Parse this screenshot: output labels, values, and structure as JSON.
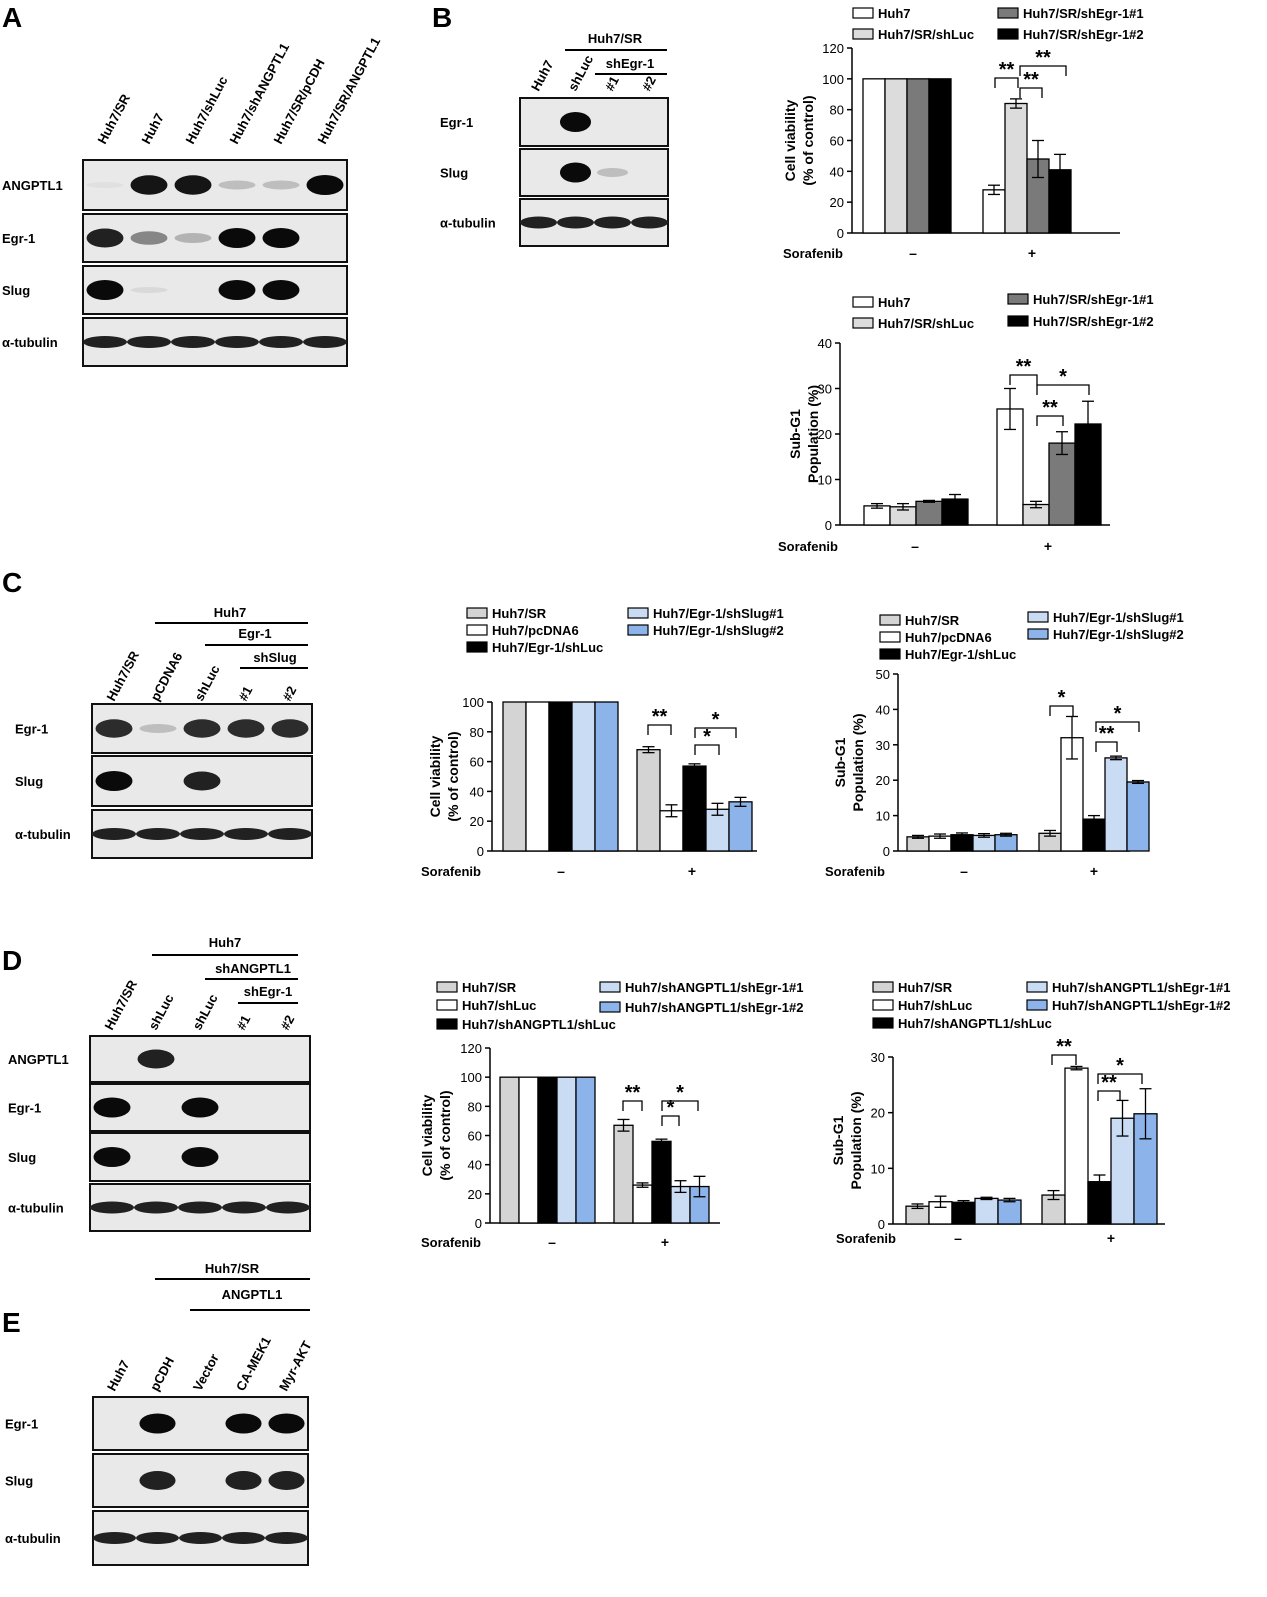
{
  "panels": {
    "A": {
      "letter": "A",
      "lanes": [
        "Huh7/SR",
        "Huh7",
        "Huh7/shLuc",
        "Huh7/shANGPTL1",
        "Huh7/SR/pCDH",
        "Huh7/SR/ANGPTL1"
      ],
      "rows": [
        "ANGPTL1",
        "Egr-1",
        "Slug",
        "α-tubulin"
      ],
      "band_intensity": [
        [
          0.05,
          0.95,
          0.95,
          0.2,
          0.2,
          1.0
        ],
        [
          0.9,
          0.45,
          0.25,
          1.0,
          1.0,
          0.0
        ],
        [
          1.0,
          0.08,
          0.0,
          1.0,
          1.0,
          0.0
        ],
        [
          0.9,
          0.9,
          0.9,
          0.9,
          0.9,
          0.9
        ]
      ]
    },
    "B": {
      "letter": "B",
      "group_top": "Huh7/SR",
      "group_sub": "shEgr-1",
      "lanes": [
        "Huh7",
        "shLuc",
        "#1",
        "#2"
      ],
      "rows": [
        "Egr-1",
        "Slug",
        "α-tubulin"
      ],
      "band_intensity": [
        [
          0.0,
          1.0,
          0.0,
          0.0
        ],
        [
          0.0,
          1.0,
          0.2,
          0.0
        ],
        [
          0.9,
          0.9,
          0.9,
          0.9
        ]
      ]
    },
    "C": {
      "letter": "C",
      "group_top": "Huh7",
      "group_mid": "Egr-1",
      "group_sub": "shSlug",
      "lanes": [
        "Huh7/SR",
        "pCDNA6",
        "shLuc",
        "#1",
        "#2"
      ],
      "rows": [
        "Egr-1",
        "Slug",
        "α-tubulin"
      ],
      "band_intensity": [
        [
          0.85,
          0.2,
          0.85,
          0.85,
          0.85
        ],
        [
          1.0,
          0.0,
          0.9,
          0.0,
          0.0
        ],
        [
          0.9,
          0.9,
          0.9,
          0.9,
          0.9
        ]
      ]
    },
    "D": {
      "letter": "D",
      "group_top": "Huh7",
      "group_mid": "shANGPTL1",
      "group_sub": "shEgr-1",
      "lanes": [
        "Huh7/SR",
        "shLuc",
        "shLuc",
        "#1",
        "#2"
      ],
      "rows": [
        "ANGPTL1",
        "Egr-1",
        "Slug",
        "α-tubulin"
      ],
      "band_intensity": [
        [
          0.0,
          0.9,
          0.0,
          0.0,
          0.0
        ],
        [
          1.0,
          0.0,
          1.0,
          0.0,
          0.0
        ],
        [
          1.0,
          0.0,
          1.0,
          0.0,
          0.0
        ],
        [
          0.9,
          0.9,
          0.9,
          0.9,
          0.9
        ]
      ]
    },
    "E": {
      "letter": "E",
      "group_top": "Huh7/SR",
      "group_sub": "ANGPTL1",
      "lanes": [
        "Huh7",
        "pCDH",
        "Vector",
        "CA-MEK1",
        "Myr-AKT"
      ],
      "rows": [
        "Egr-1",
        "Slug",
        "α-tubulin"
      ],
      "band_intensity": [
        [
          0.0,
          1.0,
          0.0,
          1.0,
          1.0
        ],
        [
          0.0,
          0.9,
          0.0,
          0.9,
          0.9
        ],
        [
          0.9,
          0.9,
          0.9,
          0.9,
          0.9
        ]
      ]
    }
  },
  "chart_data": [
    {
      "id": "B-viability",
      "type": "bar",
      "categories": [
        "–",
        "+"
      ],
      "xlabel": "Sorafenib",
      "ylabel": [
        "Cell viability",
        "(% of control)"
      ],
      "ylim": [
        0,
        120
      ],
      "yticks": [
        0,
        20,
        40,
        60,
        80,
        100,
        120
      ],
      "series": [
        {
          "name": "Huh7",
          "color": "#ffffff",
          "values": [
            100,
            28
          ],
          "err": [
            0,
            3
          ]
        },
        {
          "name": "Huh7/SR/shLuc",
          "color": "#dcdcdc",
          "values": [
            100,
            84
          ],
          "err": [
            0,
            3
          ]
        },
        {
          "name": "Huh7/SR/shEgr-1#1",
          "color": "#7a7a7a",
          "values": [
            100,
            48
          ],
          "err": [
            0,
            12
          ]
        },
        {
          "name": "Huh7/SR/shEgr-1#2",
          "color": "#000000",
          "values": [
            100,
            41
          ],
          "err": [
            0,
            10
          ]
        }
      ],
      "significance": [
        "**",
        "**",
        "**"
      ]
    },
    {
      "id": "B-subg1",
      "type": "bar",
      "categories": [
        "–",
        "+"
      ],
      "xlabel": "Sorafenib",
      "ylabel": [
        "Sub-G1",
        "Population (%)"
      ],
      "ylim": [
        0,
        40
      ],
      "yticks": [
        0,
        10,
        20,
        30,
        40
      ],
      "series": [
        {
          "name": "Huh7",
          "color": "#ffffff",
          "values": [
            4.2,
            25.5
          ],
          "err": [
            0.5,
            4.5
          ]
        },
        {
          "name": "Huh7/SR/shLuc",
          "color": "#dcdcdc",
          "values": [
            4.0,
            4.5
          ],
          "err": [
            0.7,
            0.7
          ]
        },
        {
          "name": "Huh7/SR/shEgr-1#1",
          "color": "#7a7a7a",
          "values": [
            5.2,
            18
          ],
          "err": [
            0.2,
            2.5
          ]
        },
        {
          "name": "Huh7/SR/shEgr-1#2",
          "color": "#000000",
          "values": [
            5.7,
            22.2
          ],
          "err": [
            1.0,
            5.0
          ]
        }
      ],
      "significance": [
        "**",
        "**",
        "*"
      ]
    },
    {
      "id": "C-viability",
      "type": "bar",
      "categories": [
        "–",
        "+"
      ],
      "xlabel": "Sorafenib",
      "ylabel": [
        "Cell viability",
        "(% of control)"
      ],
      "ylim": [
        0,
        100
      ],
      "yticks": [
        0,
        20,
        40,
        60,
        80,
        100
      ],
      "series": [
        {
          "name": "Huh7/SR",
          "color": "#d4d4d4",
          "values": [
            100,
            68
          ],
          "err": [
            0,
            2
          ]
        },
        {
          "name": "Huh7/pcDNA6",
          "color": "#ffffff",
          "values": [
            100,
            27
          ],
          "err": [
            0,
            4
          ]
        },
        {
          "name": "Huh7/Egr-1/shLuc",
          "color": "#000000",
          "values": [
            100,
            57
          ],
          "err": [
            0,
            1.5
          ]
        },
        {
          "name": "Huh7/Egr-1/shSlug#1",
          "color": "#c9dcf4",
          "values": [
            100,
            28
          ],
          "err": [
            0,
            4
          ]
        },
        {
          "name": "Huh7/Egr-1/shSlug#2",
          "color": "#8db4ea",
          "values": [
            100,
            33
          ],
          "err": [
            0,
            3
          ]
        }
      ],
      "significance": [
        "**",
        "*",
        "*"
      ]
    },
    {
      "id": "C-subg1",
      "type": "bar",
      "categories": [
        "–",
        "+"
      ],
      "xlabel": "Sorafenib",
      "ylabel": [
        "Sub-G1",
        "Population (%)"
      ],
      "ylim": [
        0,
        50
      ],
      "yticks": [
        0,
        10,
        20,
        30,
        40,
        50
      ],
      "series": [
        {
          "name": "Huh7/SR",
          "color": "#d4d4d4",
          "values": [
            4.0,
            5.0
          ],
          "err": [
            0.4,
            0.8
          ]
        },
        {
          "name": "Huh7/pcDNA6",
          "color": "#ffffff",
          "values": [
            4.2,
            32
          ],
          "err": [
            0.6,
            6
          ]
        },
        {
          "name": "Huh7/Egr-1/shLuc",
          "color": "#000000",
          "values": [
            4.6,
            9
          ],
          "err": [
            0.5,
            1.0
          ]
        },
        {
          "name": "Huh7/Egr-1/shSlug#1",
          "color": "#c9dcf4",
          "values": [
            4.4,
            26.3
          ],
          "err": [
            0.5,
            0.5
          ]
        },
        {
          "name": "Huh7/Egr-1/shSlug#2",
          "color": "#8db4ea",
          "values": [
            4.6,
            19.5
          ],
          "err": [
            0.4,
            0.4
          ]
        }
      ],
      "significance": [
        "*",
        "**",
        "*"
      ]
    },
    {
      "id": "D-viability",
      "type": "bar",
      "categories": [
        "–",
        "+"
      ],
      "xlabel": "Sorafenib",
      "ylabel": [
        "Cell viability",
        "(% of control)"
      ],
      "ylim": [
        0,
        120
      ],
      "yticks": [
        0,
        20,
        40,
        60,
        80,
        100,
        120
      ],
      "series": [
        {
          "name": "Huh7/SR",
          "color": "#d4d4d4",
          "values": [
            100,
            67
          ],
          "err": [
            0,
            4
          ]
        },
        {
          "name": "Huh7/shLuc",
          "color": "#ffffff",
          "values": [
            100,
            26
          ],
          "err": [
            0,
            1.5
          ]
        },
        {
          "name": "Huh7/shANGPTL1/shLuc",
          "color": "#000000",
          "values": [
            100,
            56
          ],
          "err": [
            0,
            1.5
          ]
        },
        {
          "name": "Huh7/shANGPTL1/shEgr-1#1",
          "color": "#c9dcf4",
          "values": [
            100,
            25
          ],
          "err": [
            0,
            4
          ]
        },
        {
          "name": "Huh7/shANGPTL1/shEgr-1#2",
          "color": "#8db4ea",
          "values": [
            100,
            25
          ],
          "err": [
            0,
            7
          ]
        }
      ],
      "significance": [
        "**",
        "*",
        "*"
      ]
    },
    {
      "id": "D-subg1",
      "type": "bar",
      "categories": [
        "–",
        "+"
      ],
      "xlabel": "Sorafenib",
      "ylabel": [
        "Sub-G1",
        "Population (%)"
      ],
      "ylim": [
        0,
        30
      ],
      "yticks": [
        0,
        10,
        20,
        30
      ],
      "series": [
        {
          "name": "Huh7/SR",
          "color": "#d4d4d4",
          "values": [
            3.2,
            5.2
          ],
          "err": [
            0.4,
            0.8
          ]
        },
        {
          "name": "Huh7/shLuc",
          "color": "#ffffff",
          "values": [
            4.0,
            28
          ],
          "err": [
            1.0,
            0.3
          ]
        },
        {
          "name": "Huh7/shANGPTL1/shLuc",
          "color": "#000000",
          "values": [
            3.9,
            7.6
          ],
          "err": [
            0.3,
            1.2
          ]
        },
        {
          "name": "Huh7/shANGPTL1/shEgr-1#1",
          "color": "#c9dcf4",
          "values": [
            4.6,
            19
          ],
          "err": [
            0.2,
            3.2
          ]
        },
        {
          "name": "Huh7/shANGPTL1/shEgr-1#2",
          "color": "#8db4ea",
          "values": [
            4.3,
            19.8
          ],
          "err": [
            0.3,
            4.5
          ]
        }
      ],
      "significance": [
        "**",
        "**",
        "*"
      ]
    }
  ]
}
